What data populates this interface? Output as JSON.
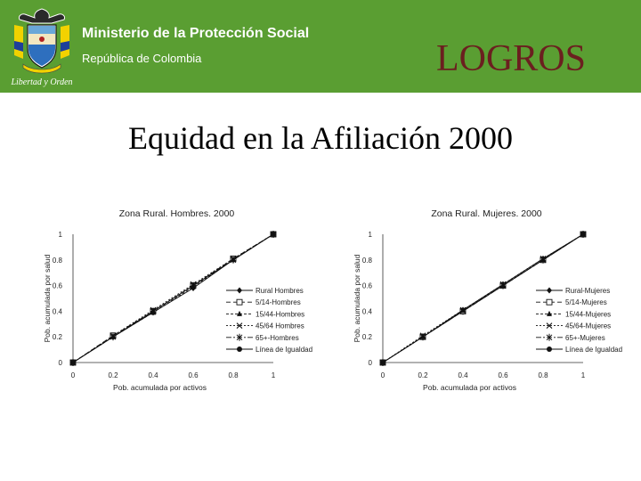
{
  "header": {
    "crest_motto": "Libertad y Orden",
    "ministry": "Ministerio de la Protección Social",
    "republic": "República de Colombia",
    "section": "LOGROS"
  },
  "slide": {
    "title": "Equidad en la Afiliación 2000"
  },
  "colors": {
    "header_green": "#5a9e32",
    "section_title": "#6b1f1f"
  },
  "chart_data": [
    {
      "type": "line",
      "title": "Zona Rural. Hombres. 2000",
      "xlabel": "Pob. acumulada por activos",
      "ylabel": "Pob. acumulada por salud",
      "xlim": [
        0,
        1
      ],
      "ylim": [
        0,
        1
      ],
      "x_ticks": [
        "0",
        "0.2",
        "0.4",
        "0.6",
        "0.8",
        "1"
      ],
      "y_ticks": [
        "0",
        "0.2",
        "0.4",
        "0.6",
        "0.8",
        "1"
      ],
      "legend_position": "bottom-right",
      "series": [
        {
          "name": "Rural Hombres",
          "marker": "diamond",
          "dash": "",
          "x": [
            0,
            0.2,
            0.4,
            0.6,
            0.8,
            1
          ],
          "y": [
            0,
            0.2,
            0.39,
            0.58,
            0.8,
            1
          ]
        },
        {
          "name": "5/14-Hombres",
          "marker": "square-open",
          "dash": "5,3",
          "x": [
            0,
            0.2,
            0.4,
            0.6,
            0.8,
            1
          ],
          "y": [
            0,
            0.21,
            0.4,
            0.6,
            0.81,
            1
          ]
        },
        {
          "name": "15/44-Hombres",
          "marker": "triangle",
          "dash": "3,2",
          "x": [
            0,
            0.2,
            0.4,
            0.6,
            0.8,
            1
          ],
          "y": [
            0,
            0.2,
            0.39,
            0.59,
            0.8,
            1
          ]
        },
        {
          "name": "45/64 Hombres",
          "marker": "x",
          "dash": "2,2",
          "x": [
            0,
            0.2,
            0.4,
            0.6,
            0.8,
            1
          ],
          "y": [
            0,
            0.21,
            0.41,
            0.61,
            0.81,
            1
          ]
        },
        {
          "name": "65+-Hombres",
          "marker": "asterisk",
          "dash": "6,2,2,2",
          "x": [
            0,
            0.2,
            0.4,
            0.6,
            0.8,
            1
          ],
          "y": [
            0,
            0.2,
            0.4,
            0.6,
            0.8,
            1
          ]
        },
        {
          "name": "Línea de Igualdad",
          "marker": "circle",
          "dash": "",
          "x": [
            0,
            1
          ],
          "y": [
            0,
            1
          ]
        }
      ]
    },
    {
      "type": "line",
      "title": "Zona Rural. Mujeres. 2000",
      "xlabel": "Pob. acumulada por activos",
      "ylabel": "Pob. acumulada por salud",
      "xlim": [
        0,
        1
      ],
      "ylim": [
        0,
        1
      ],
      "x_ticks": [
        "0",
        "0.2",
        "0.4",
        "0.6",
        "0.8",
        "1"
      ],
      "y_ticks": [
        "0",
        "0.2",
        "0.4",
        "0.6",
        "0.8",
        "1"
      ],
      "legend_position": "bottom-right",
      "series": [
        {
          "name": "Rural-Mujeres",
          "marker": "diamond",
          "dash": "",
          "x": [
            0,
            0.2,
            0.4,
            0.6,
            0.8,
            1
          ],
          "y": [
            0,
            0.2,
            0.41,
            0.61,
            0.81,
            1
          ]
        },
        {
          "name": "5/14-Mujeres",
          "marker": "square-open",
          "dash": "5,3",
          "x": [
            0,
            0.2,
            0.4,
            0.6,
            0.8,
            1
          ],
          "y": [
            0,
            0.2,
            0.4,
            0.6,
            0.8,
            1
          ]
        },
        {
          "name": "15/44-Mujeres",
          "marker": "triangle",
          "dash": "3,2",
          "x": [
            0,
            0.2,
            0.4,
            0.6,
            0.8,
            1
          ],
          "y": [
            0,
            0.2,
            0.41,
            0.6,
            0.8,
            1
          ]
        },
        {
          "name": "45/64-Mujeres",
          "marker": "x",
          "dash": "2,2",
          "x": [
            0,
            0.2,
            0.4,
            0.6,
            0.8,
            1
          ],
          "y": [
            0,
            0.21,
            0.41,
            0.61,
            0.81,
            1
          ]
        },
        {
          "name": "65+-Mujeres",
          "marker": "asterisk",
          "dash": "6,2,2,2",
          "x": [
            0,
            0.2,
            0.4,
            0.6,
            0.8,
            1
          ],
          "y": [
            0,
            0.2,
            0.4,
            0.6,
            0.8,
            1
          ]
        },
        {
          "name": "Línea de Igualdad",
          "marker": "circle",
          "dash": "",
          "x": [
            0,
            1
          ],
          "y": [
            0,
            1
          ]
        }
      ]
    }
  ]
}
